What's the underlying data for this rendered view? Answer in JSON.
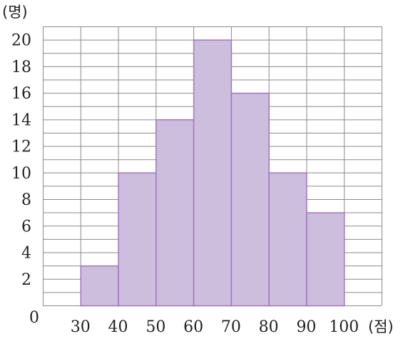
{
  "chart_data": {
    "type": "bar",
    "subtype": "histogram",
    "bins": [
      [
        30,
        40
      ],
      [
        40,
        50
      ],
      [
        50,
        60
      ],
      [
        60,
        70
      ],
      [
        70,
        80
      ],
      [
        80,
        90
      ],
      [
        90,
        100
      ]
    ],
    "values": [
      3,
      10,
      14,
      20,
      16,
      10,
      7
    ],
    "xlim": [
      20,
      110
    ],
    "ylim": [
      0,
      21
    ],
    "x_ticks": [
      30,
      40,
      50,
      60,
      70,
      80,
      90,
      100
    ],
    "y_ticks": [
      2,
      4,
      6,
      8,
      10,
      12,
      14,
      16,
      18,
      20
    ],
    "origin_label": "0",
    "y_unit": "(명)",
    "x_unit": "(점)",
    "grid": true,
    "colors": {
      "bar_fill": "#cebedd",
      "bar_stroke": "#9f77c0",
      "grid": "#8a8a8a"
    }
  }
}
